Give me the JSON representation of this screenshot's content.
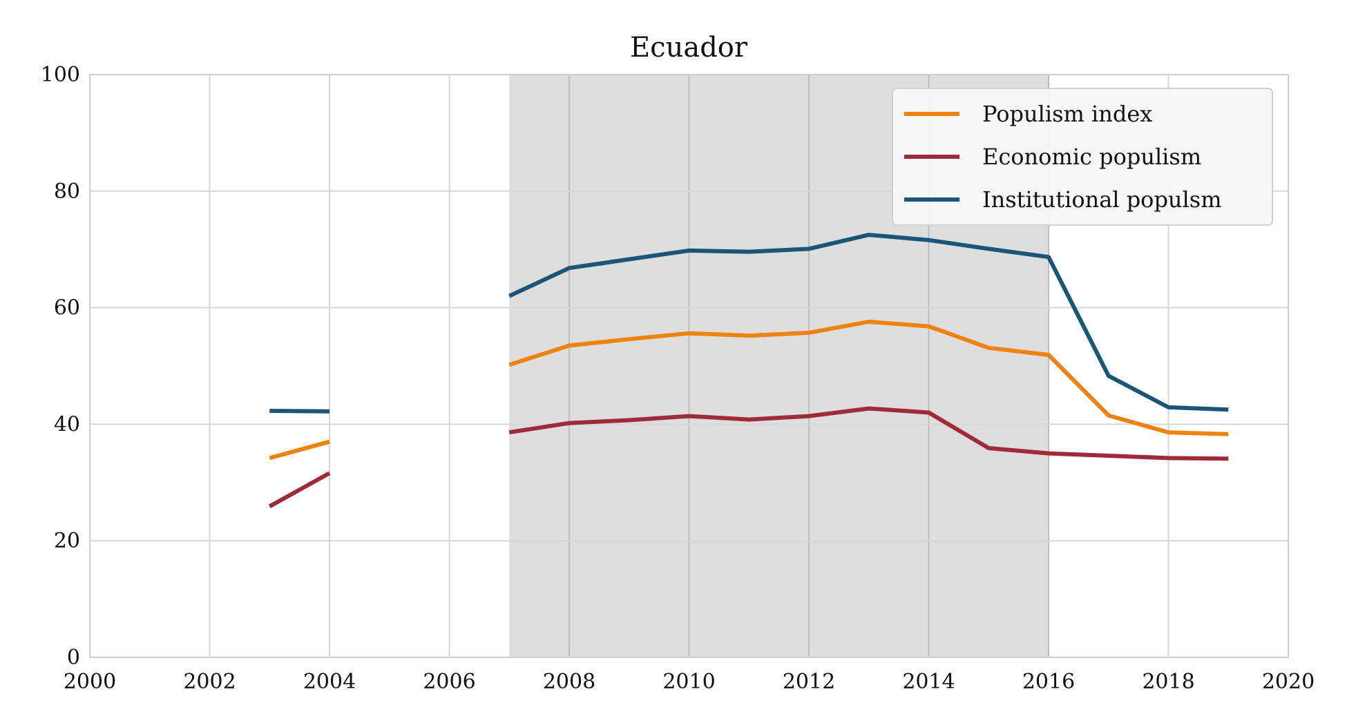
{
  "chart_data": {
    "type": "line",
    "title": "Ecuador",
    "xlabel": "",
    "ylabel": "",
    "xlim": [
      2000,
      2020
    ],
    "ylim": [
      0,
      100
    ],
    "xticks": [
      2000,
      2002,
      2004,
      2006,
      2008,
      2010,
      2012,
      2014,
      2016,
      2018,
      2020
    ],
    "yticks": [
      0,
      20,
      40,
      60,
      80,
      100
    ],
    "grid": true,
    "legend_position": "top-right",
    "shaded_region": {
      "x_start": 2007,
      "x_end": 2016,
      "color": "#dedede"
    },
    "series": [
      {
        "name": "Populism index",
        "color": "#f0820f",
        "segments": [
          {
            "x": [
              2003,
              2004
            ],
            "y": [
              34.2,
              37.0
            ]
          },
          {
            "x": [
              2007,
              2008,
              2009,
              2010,
              2011,
              2012,
              2013,
              2014,
              2015,
              2016,
              2017,
              2018,
              2019
            ],
            "y": [
              50.2,
              53.5,
              54.6,
              55.6,
              55.2,
              55.7,
              57.6,
              56.8,
              53.1,
              51.9,
              41.5,
              38.6,
              38.3
            ]
          }
        ]
      },
      {
        "name": "Economic populism",
        "color": "#9e2a3a",
        "segments": [
          {
            "x": [
              2003,
              2004
            ],
            "y": [
              25.9,
              31.6
            ]
          },
          {
            "x": [
              2007,
              2008,
              2009,
              2010,
              2011,
              2012,
              2013,
              2014,
              2015,
              2016,
              2017,
              2018,
              2019
            ],
            "y": [
              38.6,
              40.2,
              40.7,
              41.4,
              40.8,
              41.4,
              42.7,
              42.0,
              35.9,
              35.0,
              34.6,
              34.2,
              34.1
            ]
          }
        ]
      },
      {
        "name": "Institutional populsm",
        "color": "#1c5578",
        "segments": [
          {
            "x": [
              2003,
              2004
            ],
            "y": [
              42.3,
              42.2
            ]
          },
          {
            "x": [
              2007,
              2008,
              2009,
              2010,
              2011,
              2012,
              2013,
              2014,
              2015,
              2016,
              2017,
              2018,
              2019
            ],
            "y": [
              62.0,
              66.8,
              68.3,
              69.8,
              69.6,
              70.1,
              72.5,
              71.6,
              70.1,
              68.7,
              48.3,
              42.9,
              42.5
            ]
          }
        ]
      }
    ]
  }
}
